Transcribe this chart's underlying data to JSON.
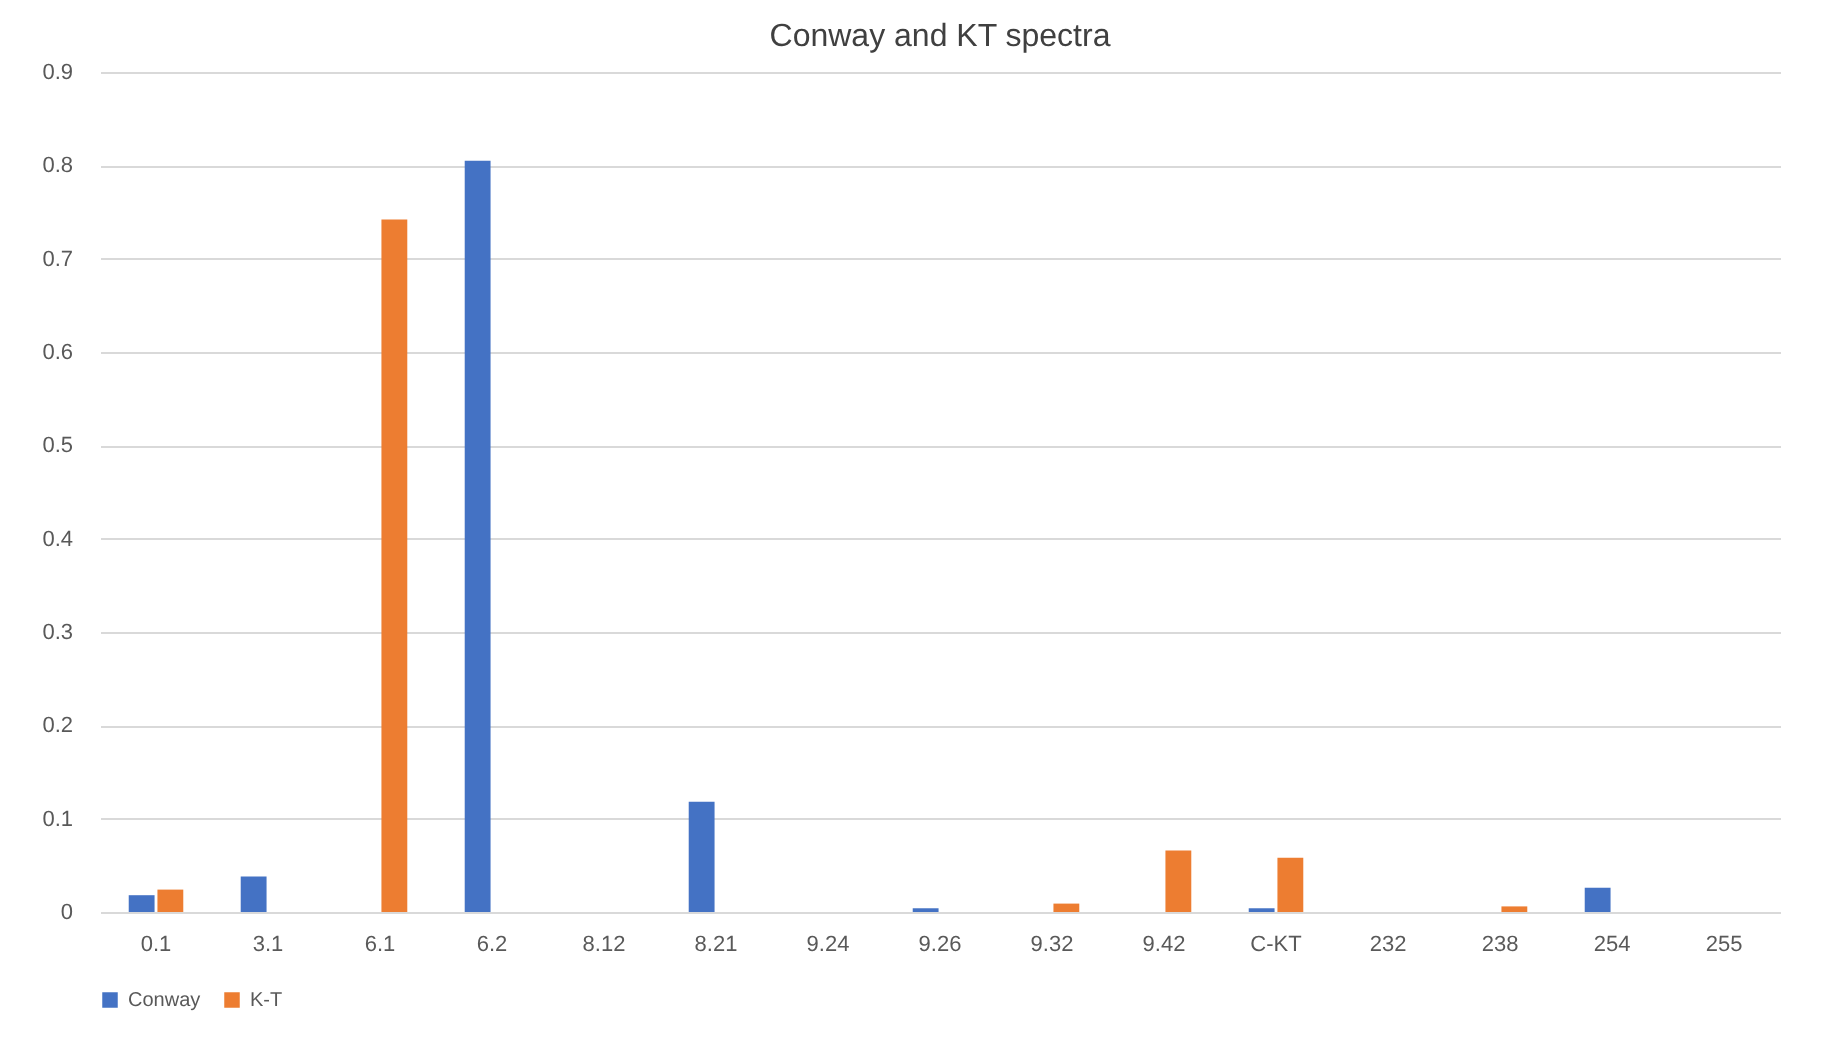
{
  "chart_data": {
    "type": "bar",
    "title": "Conway and KT spectra",
    "categories": [
      "0.1",
      "3.1",
      "6.1",
      "6.2",
      "8.12",
      "8.21",
      "9.24",
      "9.26",
      "9.32",
      "9.42",
      "C-KT",
      "232",
      "238",
      "254",
      "255"
    ],
    "series": [
      {
        "name": "Conway",
        "color": "#4472c4",
        "values": [
          0.018,
          0.038,
          null,
          0.805,
          null,
          0.118,
          null,
          0.004,
          null,
          null,
          0.004,
          null,
          null,
          0.026,
          null
        ]
      },
      {
        "name": "K-T",
        "color": "#ed7d31",
        "values": [
          0.024,
          null,
          0.742,
          null,
          null,
          null,
          null,
          null,
          0.009,
          0.066,
          0.058,
          null,
          0.006,
          null,
          null
        ]
      }
    ],
    "ylim": [
      0,
      0.9
    ],
    "yticks": [
      0,
      0.1,
      0.2,
      0.3,
      0.4,
      0.5,
      0.6,
      0.7,
      0.8,
      0.9
    ],
    "grid": "y",
    "legend": "bottom"
  }
}
